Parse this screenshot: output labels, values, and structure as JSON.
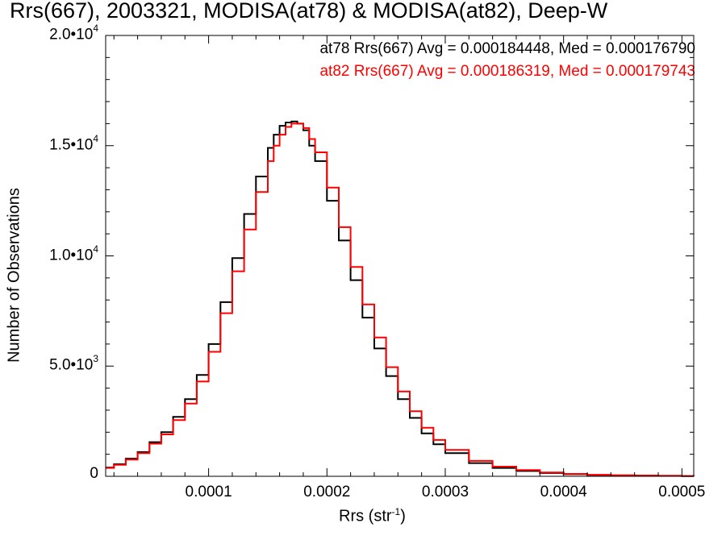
{
  "chart_data": {
    "type": "line",
    "title": "Rrs(667), 2003321, MODISA(at78) & MODISA(at82), Deep-W",
    "xlabel": "Rrs (str",
    "xlabel_sup": "-1",
    "xlabel_end": ")",
    "ylabel": "Number of Observations",
    "xlim": [
      1.3e-05,
      0.00051
    ],
    "ylim": [
      0,
      20000
    ],
    "x_ticks": [
      {
        "value": 0.0001,
        "label": "0.0001"
      },
      {
        "value": 0.0002,
        "label": "0.0002"
      },
      {
        "value": 0.0003,
        "label": "0.0003"
      },
      {
        "value": 0.0004,
        "label": "0.0004"
      },
      {
        "value": 0.0005,
        "label": "0.0005"
      }
    ],
    "y_ticks": [
      {
        "value": 0,
        "base": "0",
        "exp": ""
      },
      {
        "value": 5000,
        "base": "5.0•10",
        "exp": "3"
      },
      {
        "value": 10000,
        "base": "1.0•10",
        "exp": "4"
      },
      {
        "value": 15000,
        "base": "1.5•10",
        "exp": "4"
      },
      {
        "value": 20000,
        "base": "2.0•10",
        "exp": "4"
      }
    ],
    "annotations": {
      "at78": "at78 Rrs(667) Avg = 0.000184448, Med = 0.000176790",
      "at82": "at82 Rrs(667) Avg = 0.000186319, Med = 0.000179743"
    },
    "series": [
      {
        "color": "#000000",
        "x": [
          1.3e-05,
          2e-05,
          3e-05,
          4e-05,
          5e-05,
          6e-05,
          7e-05,
          8e-05,
          9e-05,
          0.0001,
          0.00011,
          0.00012,
          0.00013,
          0.00014,
          0.00015,
          0.000155,
          0.00016,
          0.000165,
          0.00017,
          0.000175,
          0.00018,
          0.000185,
          0.00019,
          0.0002,
          0.00021,
          0.00022,
          0.00023,
          0.00024,
          0.00025,
          0.00026,
          0.00027,
          0.00028,
          0.00029,
          0.0003,
          0.00032,
          0.00034,
          0.00036,
          0.00038,
          0.0004,
          0.00042,
          0.00044,
          0.00046,
          0.00048,
          0.0005,
          0.00051
        ],
        "values": [
          400,
          550,
          800,
          1100,
          1550,
          2000,
          2700,
          3500,
          4600,
          6000,
          7900,
          9900,
          11900,
          13600,
          14900,
          15500,
          15900,
          16050,
          16100,
          16000,
          15700,
          15000,
          14300,
          12500,
          10700,
          8900,
          7200,
          5800,
          4550,
          3500,
          2650,
          1950,
          1450,
          1050,
          600,
          380,
          240,
          150,
          95,
          60,
          40,
          30,
          20,
          12,
          8
        ]
      },
      {
        "color": "#ff0000",
        "x": [
          1.3e-05,
          2e-05,
          3e-05,
          4e-05,
          5e-05,
          6e-05,
          7e-05,
          8e-05,
          9e-05,
          0.0001,
          0.00011,
          0.00012,
          0.00013,
          0.00014,
          0.00015,
          0.000155,
          0.00016,
          0.000165,
          0.00017,
          0.000175,
          0.00018,
          0.000185,
          0.00019,
          0.0002,
          0.00021,
          0.00022,
          0.00023,
          0.00024,
          0.00025,
          0.00026,
          0.00027,
          0.00028,
          0.00029,
          0.0003,
          0.00032,
          0.00034,
          0.00036,
          0.00038,
          0.0004,
          0.00042,
          0.00044,
          0.00046,
          0.00048,
          0.0005,
          0.00051
        ],
        "values": [
          380,
          520,
          760,
          1050,
          1480,
          1900,
          2550,
          3300,
          4300,
          5650,
          7400,
          9300,
          11200,
          12900,
          14300,
          15000,
          15500,
          15850,
          16000,
          16000,
          15800,
          15300,
          14700,
          13100,
          11300,
          9500,
          7800,
          6300,
          4950,
          3850,
          2950,
          2200,
          1650,
          1200,
          700,
          440,
          280,
          175,
          110,
          70,
          48,
          35,
          24,
          15,
          10
        ]
      }
    ]
  }
}
